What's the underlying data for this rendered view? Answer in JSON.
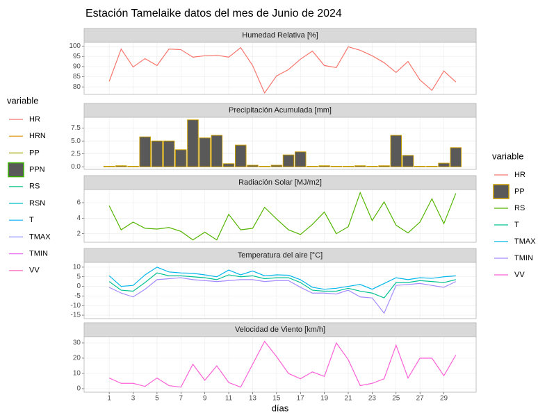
{
  "title": "Estación Tamelaike datos del mes de Junio de 2024",
  "legends": [
    {
      "title": "variable",
      "entries": [
        {
          "name": "HR",
          "color": "#F8766D",
          "kind": "line"
        },
        {
          "name": "HRN",
          "color": "#D89000",
          "kind": "line"
        },
        {
          "name": "PP",
          "color": "#A3A500",
          "kind": "line"
        },
        {
          "name": "PPN",
          "color": "#39B600",
          "kind": "box"
        },
        {
          "name": "RS",
          "color": "#00BF7D",
          "kind": "line"
        },
        {
          "name": "RSN",
          "color": "#00BFC4",
          "kind": "line"
        },
        {
          "name": "T",
          "color": "#00B0F6",
          "kind": "line"
        },
        {
          "name": "TMAX",
          "color": "#9590FF",
          "kind": "line"
        },
        {
          "name": "TMIN",
          "color": "#E76BF3",
          "kind": "line"
        },
        {
          "name": "VV",
          "color": "#FF62BC",
          "kind": "line"
        }
      ]
    },
    {
      "title": "variable",
      "entries": [
        {
          "name": "HR",
          "color": "#F8766D",
          "kind": "line"
        },
        {
          "name": "PP",
          "color": "#C49A00",
          "kind": "box"
        },
        {
          "name": "RS",
          "color": "#53B400",
          "kind": "line"
        },
        {
          "name": "T",
          "color": "#00C094",
          "kind": "line"
        },
        {
          "name": "TMAX",
          "color": "#00B6EB",
          "kind": "line"
        },
        {
          "name": "TMIN",
          "color": "#A58AFF",
          "kind": "line"
        },
        {
          "name": "VV",
          "color": "#FB61D7",
          "kind": "line"
        }
      ]
    }
  ],
  "chart_data": [
    {
      "type": "line",
      "title": "Humedad Relativa [%]",
      "x": [
        1,
        2,
        3,
        4,
        5,
        6,
        7,
        8,
        9,
        10,
        11,
        12,
        13,
        14,
        15,
        16,
        17,
        18,
        19,
        20,
        21,
        22,
        23,
        24,
        25,
        26,
        27,
        28,
        29,
        30
      ],
      "xlim": [
        -1.1,
        31.7
      ],
      "ylim": [
        76.3,
        101.9
      ],
      "yticks": [
        80,
        85,
        90,
        95,
        100
      ],
      "series": [
        {
          "name": "HR",
          "color": "#F8766D",
          "values": [
            82.7,
            98.6,
            89.8,
            93.9,
            90.5,
            98.6,
            98.3,
            94.6,
            95.3,
            95.6,
            94.6,
            99.3,
            90.5,
            77,
            85.4,
            88.5,
            93.6,
            97.6,
            90.5,
            89.5,
            99.7,
            98,
            95.3,
            91.9,
            87.1,
            92.5,
            83.4,
            78.3,
            87.8,
            82.4
          ]
        }
      ]
    },
    {
      "type": "bar",
      "title": "Precipitación Acumulada [mm]",
      "x": [
        1,
        2,
        3,
        4,
        5,
        6,
        7,
        8,
        9,
        10,
        11,
        12,
        13,
        14,
        15,
        16,
        17,
        18,
        19,
        20,
        21,
        22,
        23,
        24,
        25,
        26,
        27,
        28,
        29,
        30
      ],
      "xlim": [
        -1.1,
        31.7
      ],
      "ylim": [
        -0.5,
        9.6
      ],
      "yticks": [
        {
          "value": 0,
          "label": "0.0"
        },
        2.5,
        {
          "value": 5,
          "label": "5.0"
        },
        7.5
      ],
      "series": [
        {
          "name": "PP",
          "color": "#C49A00",
          "values": [
            0.1,
            0.2,
            0.1,
            5.8,
            5.0,
            5.0,
            3.3,
            9.1,
            5.6,
            6.1,
            0.6,
            4.2,
            0.3,
            0.1,
            0.3,
            2.3,
            2.9,
            0.1,
            0.2,
            0.1,
            0.1,
            0.2,
            0.1,
            0.2,
            6.1,
            2.2,
            0.1,
            0.1,
            0.7,
            3.7
          ]
        }
      ]
    },
    {
      "type": "line",
      "title": "Radiación Solar [MJ/m2]",
      "x": [
        1,
        2,
        3,
        4,
        5,
        6,
        7,
        8,
        9,
        10,
        11,
        12,
        13,
        14,
        15,
        16,
        17,
        18,
        19,
        20,
        21,
        22,
        23,
        24,
        25,
        26,
        27,
        28,
        29,
        30
      ],
      "xlim": [
        -1.1,
        31.7
      ],
      "ylim": [
        0.9,
        7.7
      ],
      "yticks": [
        2,
        4,
        6
      ],
      "series": [
        {
          "name": "RS",
          "color": "#53B400",
          "values": [
            5.6,
            2.5,
            3.5,
            2.7,
            2.6,
            2.8,
            2.3,
            1.2,
            2.2,
            1.2,
            4.5,
            2.5,
            2.7,
            5.4,
            3.9,
            2.5,
            1.9,
            3.2,
            4.8,
            2.0,
            2.9,
            7.3,
            3.7,
            6.1,
            3.1,
            2.1,
            3.5,
            6.5,
            3.3,
            7.2
          ]
        }
      ]
    },
    {
      "type": "line",
      "title": "Temperatura del aire [°C]",
      "x": [
        1,
        2,
        3,
        4,
        5,
        6,
        7,
        8,
        9,
        10,
        11,
        12,
        13,
        14,
        15,
        16,
        17,
        18,
        19,
        20,
        21,
        22,
        23,
        24,
        25,
        26,
        27,
        28,
        29,
        30
      ],
      "xlim": [
        -1.1,
        31.7
      ],
      "ylim": [
        -16.8,
        12.5
      ],
      "yticks": [
        -15,
        -10,
        -5,
        0,
        5,
        10
      ],
      "series": [
        {
          "name": "T",
          "color": "#00C094",
          "values": [
            2.5,
            -2,
            -2.5,
            2,
            7,
            5.5,
            5.5,
            5,
            4.5,
            3.5,
            6,
            5,
            5.5,
            4,
            4.5,
            4.5,
            2,
            -2,
            -2.5,
            -2.5,
            -1,
            -2.5,
            -3.5,
            -6,
            2,
            2,
            3,
            2.5,
            2,
            3.5
          ]
        },
        {
          "name": "TMAX",
          "color": "#00B6EB",
          "values": [
            5.5,
            0,
            0.5,
            6,
            10,
            7.5,
            7,
            6.8,
            6,
            5,
            8.5,
            6,
            8,
            5.5,
            6,
            5.8,
            3.5,
            -0.5,
            -1.5,
            -1,
            0,
            1,
            -1.5,
            1.5,
            4.5,
            3.5,
            4.5,
            4.2,
            5,
            5.5
          ]
        },
        {
          "name": "TMIN",
          "color": "#A58AFF",
          "values": [
            -0.5,
            -3.5,
            -5.5,
            -1.5,
            3.5,
            4,
            4.5,
            3.5,
            3,
            2.5,
            3,
            3.5,
            3.5,
            2.5,
            3,
            3,
            -0.5,
            -3.5,
            -3.5,
            -4,
            -2,
            -5.5,
            -6,
            -14,
            0.5,
            1,
            1.5,
            0.5,
            -0.5,
            2.5
          ]
        }
      ]
    },
    {
      "type": "line",
      "title": "Velocidad de Viento [km/h]",
      "x_label": "días",
      "x": [
        1,
        2,
        3,
        4,
        5,
        6,
        7,
        8,
        9,
        10,
        11,
        12,
        13,
        14,
        15,
        16,
        17,
        18,
        19,
        20,
        21,
        22,
        23,
        24,
        25,
        26,
        27,
        28,
        29,
        30
      ],
      "xlim": [
        -1.1,
        31.7
      ],
      "xticks": [
        1,
        3,
        5,
        7,
        9,
        11,
        13,
        15,
        17,
        19,
        21,
        23,
        25,
        27,
        29
      ],
      "ylim": [
        -2.3,
        34.1
      ],
      "yticks": [
        0,
        10,
        20,
        30
      ],
      "series": [
        {
          "name": "VV",
          "color": "#FB61D7",
          "values": [
            7,
            3.5,
            3.5,
            1.5,
            7,
            2,
            1,
            16,
            5.5,
            15,
            4,
            1,
            16,
            31,
            21,
            10,
            6.5,
            11,
            8,
            30,
            19,
            2,
            3.5,
            6.5,
            28.5,
            7,
            20,
            20,
            8.5,
            22
          ]
        }
      ]
    }
  ]
}
